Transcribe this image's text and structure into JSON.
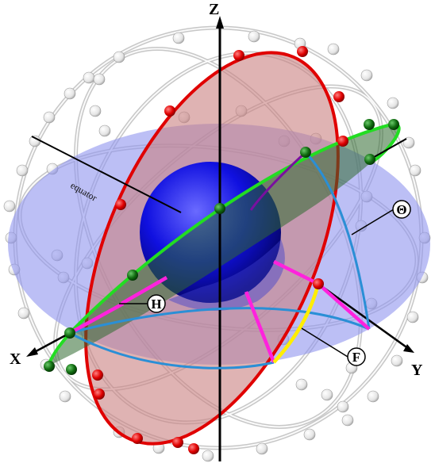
{
  "axes": {
    "z_label": "Z",
    "x_label": "X",
    "y_label": "Y"
  },
  "labels": {
    "equator": "equator"
  },
  "callouts": {
    "theta": "Θ",
    "h": "H",
    "f": "F"
  },
  "colors": {
    "equatorial_plane": "#8f95ee",
    "meridian_plane": "#c98080",
    "meridian_circle": "#e00000",
    "tilted_circle": "#22dd22",
    "core_sphere": "#1010e0",
    "arc_blue": "#2a8fd6",
    "arc_magenta": "#ff22dd",
    "arc_yellow": "#ffee00",
    "cage": "#d9d9d9"
  }
}
